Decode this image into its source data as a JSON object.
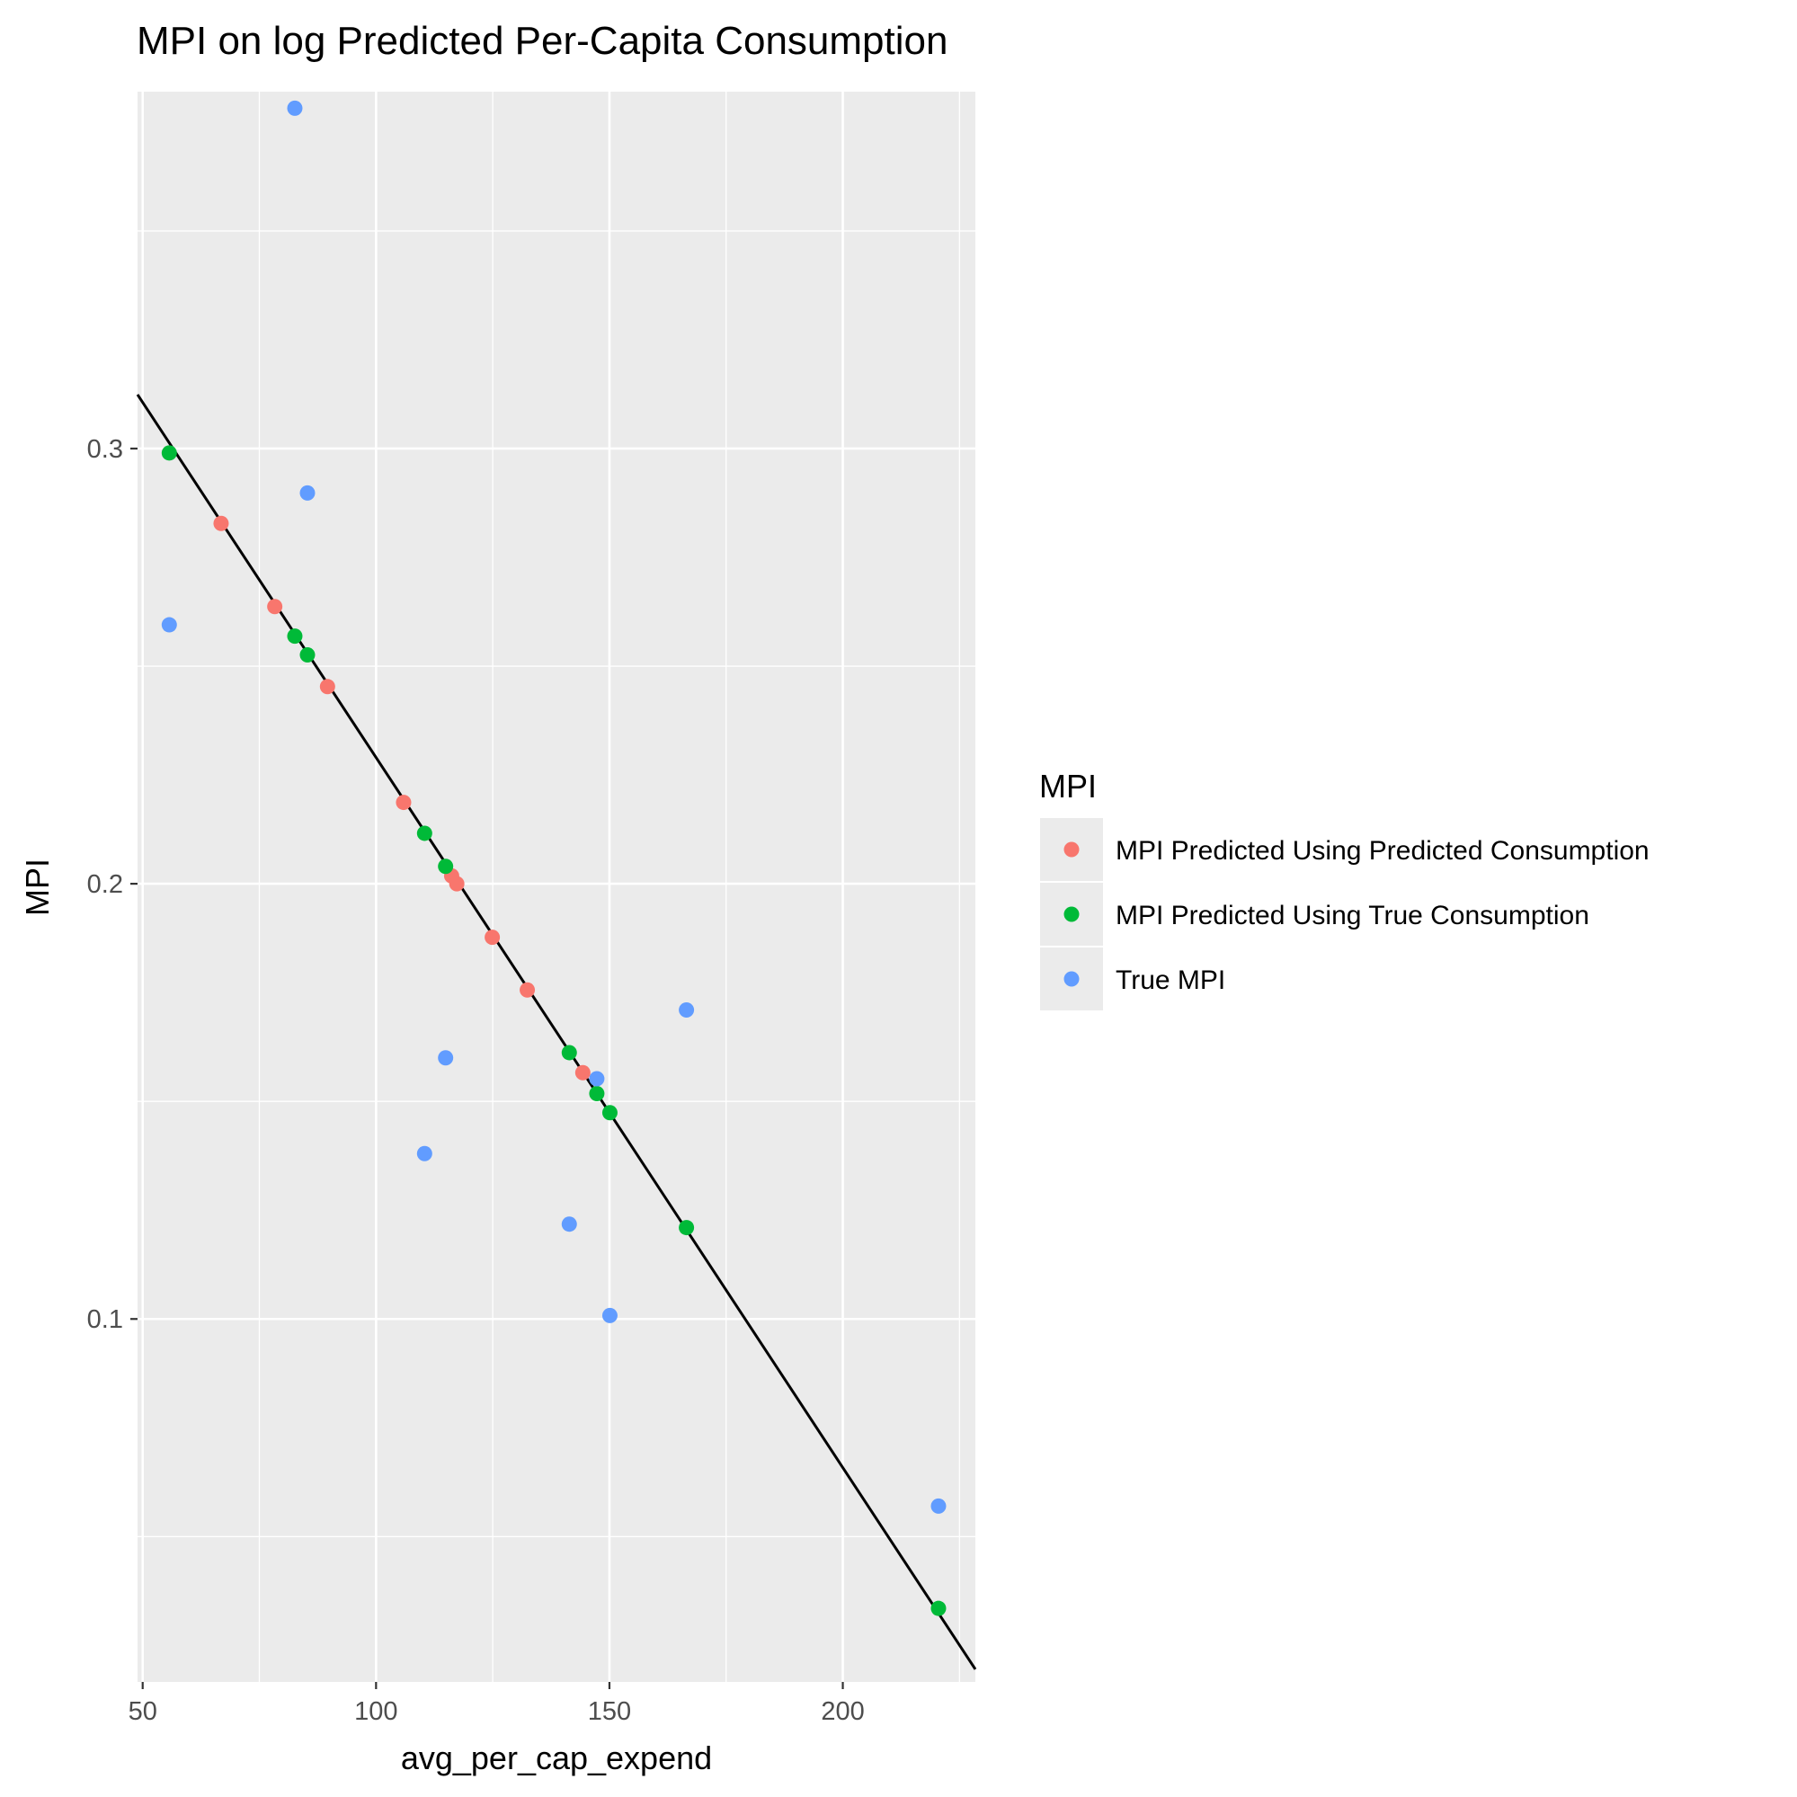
{
  "chart_data": {
    "type": "scatter",
    "title": "MPI on log Predicted Per-Capita Consumption",
    "xlabel": "avg_per_cap_expend",
    "ylabel": "MPI",
    "xlim": [
      48.9,
      228.4
    ],
    "ylim": [
      0.0166,
      0.382
    ],
    "x_ticks": [
      50,
      100,
      150,
      200
    ],
    "x_tick_labels": [
      "50",
      "100",
      "150",
      "200"
    ],
    "y_ticks": [
      0.1,
      0.2,
      0.3
    ],
    "y_tick_labels": [
      "0.1",
      "0.2",
      "0.3"
    ],
    "grid": true,
    "legend_position": "right",
    "legend_title": "MPI",
    "fit_line": {
      "x": [
        48.9,
        228.4
      ],
      "y": [
        0.3124,
        0.0195
      ],
      "color": "#000000"
    },
    "series": [
      {
        "name": "MPI Predicted Using Predicted Consumption",
        "color": "#F8766D",
        "x": [
          66.8,
          78.3,
          89.6,
          105.9,
          116.2,
          117.3,
          124.9,
          132.4,
          144.3
        ],
        "y": [
          0.2828,
          0.2637,
          0.2453,
          0.2187,
          0.2018,
          0.2,
          0.1877,
          0.1756,
          0.1566
        ]
      },
      {
        "name": "MPI Predicted Using True Consumption",
        "color": "#00BA38",
        "x": [
          55.7,
          82.6,
          85.3,
          110.4,
          114.9,
          141.4,
          147.3,
          150.1,
          166.5,
          220.5
        ],
        "y": [
          0.299,
          0.2569,
          0.2526,
          0.2116,
          0.204,
          0.1612,
          0.1518,
          0.1474,
          0.121,
          0.0335
        ]
      },
      {
        "name": "True MPI",
        "color": "#619CFF",
        "x": [
          82.6,
          85.3,
          55.7,
          166.5,
          114.9,
          147.3,
          110.4,
          141.4,
          150.1,
          220.5
        ],
        "y": [
          0.3782,
          0.2898,
          0.2595,
          0.171,
          0.16,
          0.1552,
          0.138,
          0.1218,
          0.1008,
          0.057
        ]
      }
    ]
  }
}
